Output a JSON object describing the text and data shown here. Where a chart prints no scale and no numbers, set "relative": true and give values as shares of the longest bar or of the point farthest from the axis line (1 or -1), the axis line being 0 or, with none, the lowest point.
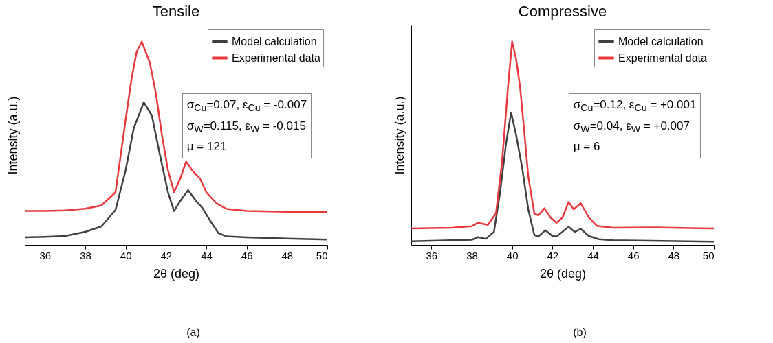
{
  "chart_data": [
    {
      "type": "line",
      "title": "Tensile",
      "xlabel": "2θ (deg)",
      "ylabel": "Intensity (a.u.)",
      "relative": true,
      "xlim": [
        35,
        50
      ],
      "xticks": [
        36,
        38,
        40,
        42,
        44,
        46,
        48,
        50
      ],
      "legend": "top right",
      "series": [
        {
          "name": "Model calculation",
          "color": "#404040",
          "x": [
            35,
            36,
            37,
            38,
            38.8,
            39.5,
            40,
            40.4,
            40.9,
            41.3,
            41.7,
            42.1,
            42.4,
            42.7,
            43.1,
            43.5,
            43.8,
            44.2,
            44.6,
            45,
            46,
            48,
            50
          ],
          "values": [
            0.037,
            0.04,
            0.044,
            0.064,
            0.091,
            0.172,
            0.367,
            0.573,
            0.702,
            0.637,
            0.443,
            0.259,
            0.167,
            0.215,
            0.269,
            0.215,
            0.183,
            0.118,
            0.058,
            0.042,
            0.037,
            0.031,
            0.026
          ]
        },
        {
          "name": "Experimental data",
          "color": "#e8383d",
          "x": [
            35,
            36,
            37,
            38,
            38.8,
            39.5,
            40,
            40.3,
            40.55,
            40.8,
            41.2,
            41.5,
            41.8,
            42.1,
            42.4,
            42.7,
            43,
            43.3,
            43.7,
            44,
            44.5,
            45,
            46,
            48,
            50
          ],
          "values": [
            0.167,
            0.167,
            0.17,
            0.178,
            0.194,
            0.259,
            0.616,
            0.821,
            0.951,
            1.0,
            0.897,
            0.746,
            0.54,
            0.367,
            0.259,
            0.324,
            0.41,
            0.367,
            0.324,
            0.259,
            0.205,
            0.177,
            0.167,
            0.163,
            0.161
          ]
        }
      ],
      "annotations": [
        "σ$_{Cu}$=0.07, ε$_{Cu}$ = -0.007",
        "σ$_{W}$=0.115, ε$_{W}$ = -0.015",
        "μ = 121",
        "(a)"
      ]
    },
    {
      "type": "line",
      "title": "Compressive",
      "xlabel": "2θ (deg)",
      "ylabel": "Intensity (a.u.)",
      "relative": true,
      "xlim": [
        35,
        50
      ],
      "xticks": [
        36,
        38,
        40,
        42,
        44,
        46,
        48,
        50
      ],
      "legend": "top right",
      "series": [
        {
          "name": "Model calculation",
          "color": "#404040",
          "x": [
            35,
            37,
            38,
            38.3,
            38.7,
            39.1,
            39.4,
            39.7,
            39.95,
            40.2,
            40.5,
            40.8,
            41.1,
            41.3,
            41.65,
            42,
            42.2,
            42.8,
            43.1,
            43.4,
            43.8,
            44.3,
            45,
            50
          ],
          "values": [
            0.018,
            0.023,
            0.025,
            0.038,
            0.03,
            0.064,
            0.256,
            0.499,
            0.651,
            0.54,
            0.378,
            0.175,
            0.049,
            0.041,
            0.072,
            0.044,
            0.041,
            0.089,
            0.064,
            0.079,
            0.044,
            0.028,
            0.023,
            0.016
          ]
        },
        {
          "name": "Experimental data",
          "color": "#e8383d",
          "x": [
            35,
            37,
            38,
            38.3,
            38.8,
            39.2,
            39.5,
            39.8,
            40,
            40.2,
            40.4,
            40.6,
            40.8,
            41.1,
            41.3,
            41.6,
            41.9,
            42.2,
            42.5,
            42.8,
            43.05,
            43.4,
            43.8,
            44.2,
            45,
            47,
            50
          ],
          "values": [
            0.081,
            0.084,
            0.092,
            0.109,
            0.099,
            0.155,
            0.408,
            0.782,
            1.0,
            0.914,
            0.772,
            0.56,
            0.337,
            0.155,
            0.145,
            0.18,
            0.135,
            0.109,
            0.135,
            0.211,
            0.175,
            0.205,
            0.135,
            0.094,
            0.084,
            0.086,
            0.081
          ]
        }
      ],
      "annotations": [
        "σ$_{Cu}$=0.12, ε$_{Cu}$ = +0.001",
        "σ$_{W}$=0.04, ε$_{W}$ = +0.007",
        "μ = 6",
        "(b)"
      ]
    }
  ]
}
